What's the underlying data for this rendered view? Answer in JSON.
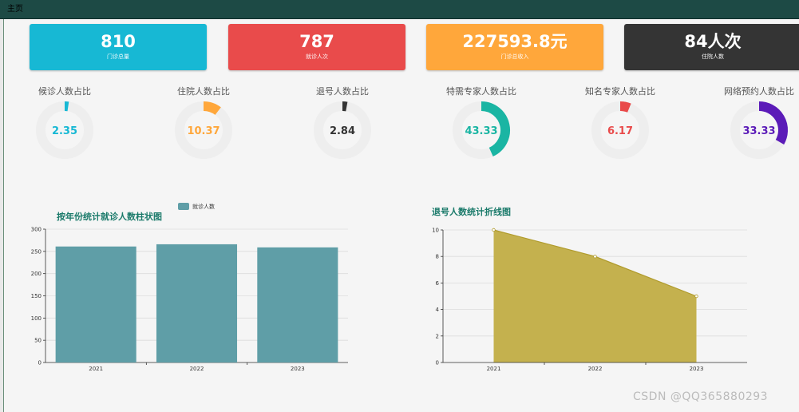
{
  "window": {
    "title": "主页"
  },
  "colors": {
    "teal_bar": "#5f9ea7",
    "olive_area": "#c4b14e",
    "olive_line": "#b09b2c",
    "title_green": "#1a7a6a",
    "ring_bg": "#eeeeee"
  },
  "cards": [
    {
      "value": "810",
      "label": "门诊总量",
      "color": "#17b8d4"
    },
    {
      "value": "787",
      "label": "就诊人次",
      "color": "#e94b4b"
    },
    {
      "value": "227593.8元",
      "label": "门诊总收入",
      "color": "#ffa73b"
    },
    {
      "value": "84人次",
      "label": "住院人数",
      "color": "#343434"
    }
  ],
  "gauges": [
    {
      "title": "候诊人数占比",
      "value": "2.35",
      "percent": 2.35,
      "color": "#17b8d4"
    },
    {
      "title": "住院人数占比",
      "value": "10.37",
      "percent": 10.37,
      "color": "#ffa73b"
    },
    {
      "title": "退号人数占比",
      "value": "2.84",
      "percent": 2.84,
      "color": "#343434"
    },
    {
      "title": "特需专家人数占比",
      "value": "43.33",
      "percent": 43.33,
      "color": "#1ab5a3"
    },
    {
      "title": "知名专家人数占比",
      "value": "6.17",
      "percent": 6.17,
      "color": "#e94b4b"
    },
    {
      "title": "网络预约人数占比",
      "value": "33.33",
      "percent": 33.33,
      "color": "#5b1bb8"
    }
  ],
  "chart_data": [
    {
      "type": "bar",
      "title": "按年份统计就诊人数柱状图",
      "categories": [
        "2021",
        "2022",
        "2023"
      ],
      "series": [
        {
          "name": "就诊人数",
          "values": [
            261,
            266,
            259
          ]
        }
      ],
      "ylim": [
        0,
        300
      ],
      "yticks": [
        "0",
        "50",
        "100",
        "150",
        "200",
        "250",
        "300"
      ],
      "grid": true,
      "legend": "top-center"
    },
    {
      "type": "area",
      "title": "退号人数统计折线图",
      "categories": [
        "2021",
        "2022",
        "2023"
      ],
      "series": [
        {
          "values": [
            10,
            8,
            5
          ]
        }
      ],
      "ylim": [
        0,
        10
      ],
      "yticks": [
        "0",
        "2",
        "4",
        "6",
        "8",
        "10"
      ],
      "grid": true
    }
  ],
  "watermark": "CSDN @QQ365880293"
}
